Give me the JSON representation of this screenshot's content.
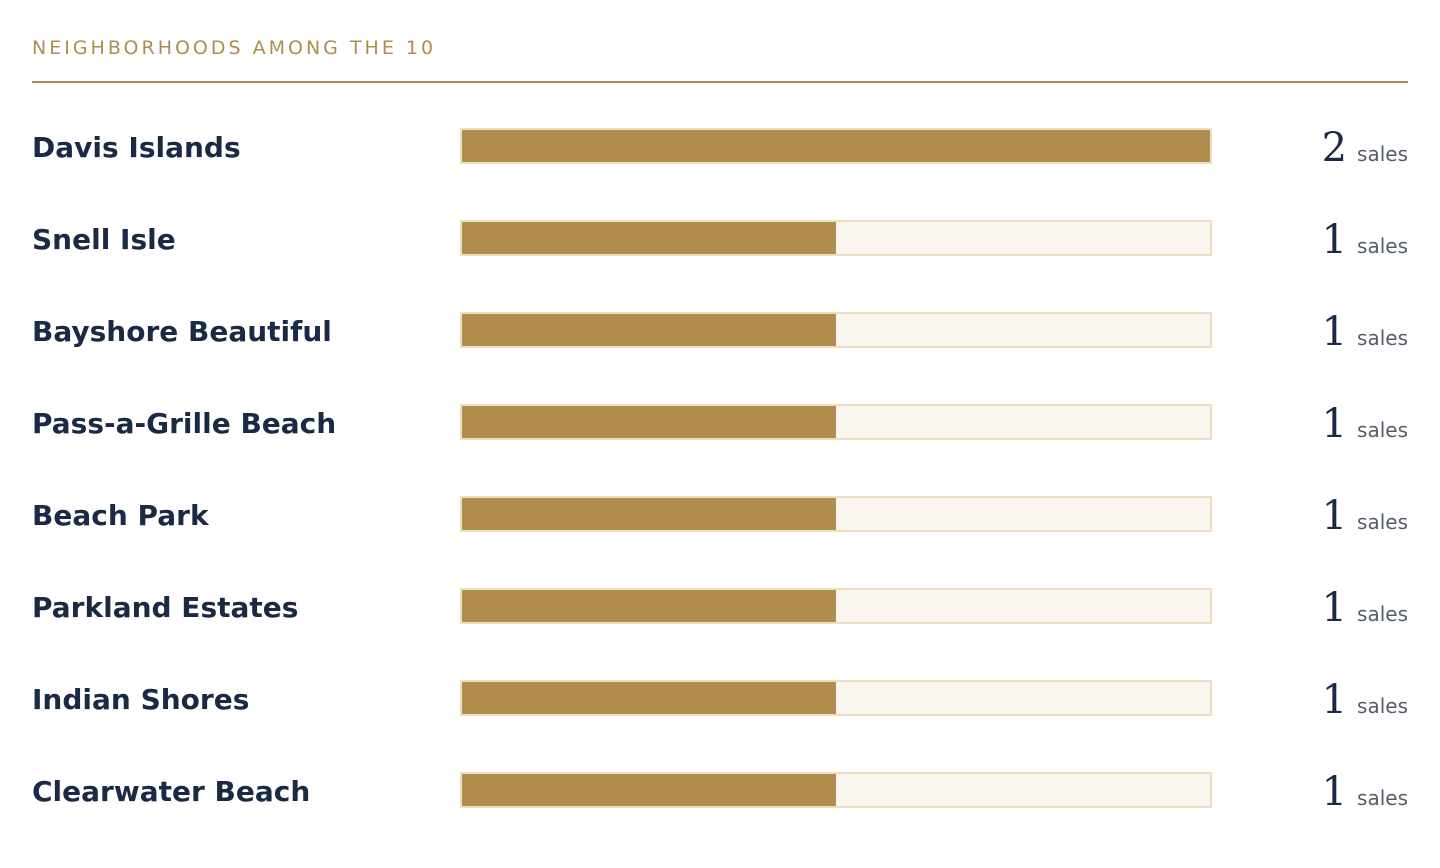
{
  "section": {
    "title": "NEIGHBORHOODS AMONG THE 10"
  },
  "colors": {
    "accent": "#b08d4e",
    "track": "#faf6ef",
    "track_border": "#ecdcc0",
    "text": "#1b2a44",
    "muted": "#555d68"
  },
  "chart_data": {
    "type": "bar",
    "categories": [
      "Davis Islands",
      "Snell Isle",
      "Bayshore Beautiful",
      "Pass-a-Grille Beach",
      "Beach Park",
      "Parkland Estates",
      "Indian Shores",
      "Clearwater Beach"
    ],
    "values": [
      2,
      1,
      1,
      1,
      1,
      1,
      1,
      1
    ],
    "value_unit": "sales",
    "max": 2
  }
}
